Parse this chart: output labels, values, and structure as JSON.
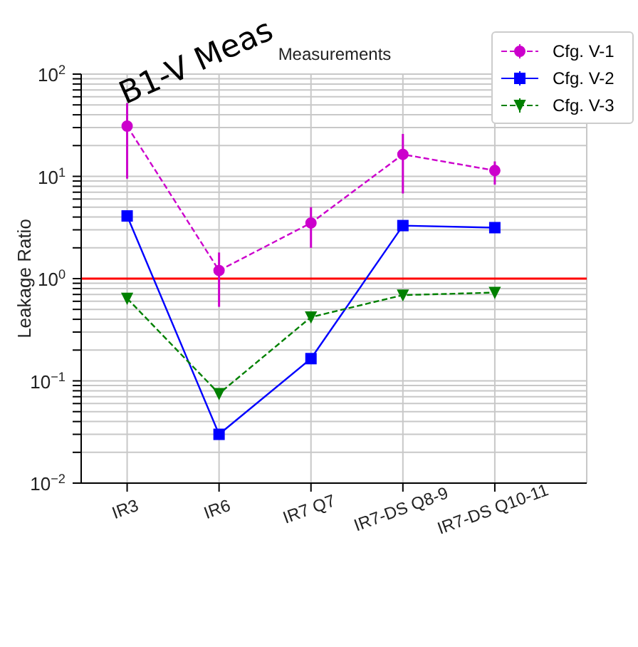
{
  "chart_data": {
    "type": "line",
    "title": "Measurements",
    "ylabel": "Leakage Ratio",
    "annotations": [
      "B1-V Meas"
    ],
    "categories": [
      "IR3",
      "IR6",
      "IR7 Q7",
      "IR7-DS Q8-9",
      "IR7-DS Q10-11"
    ],
    "series": [
      {
        "name": "Cfg. V-1",
        "color": "#cc00cc",
        "line_style": "dashed",
        "marker": "circle",
        "values": [
          31,
          1.2,
          3.5,
          16.4,
          11.4
        ],
        "errors": [
          [
            9.5,
            52
          ],
          [
            0.53,
            1.8
          ],
          [
            2.0,
            5.0
          ],
          [
            6.8,
            26
          ],
          [
            8.3,
            14
          ]
        ]
      },
      {
        "name": "Cfg. V-2",
        "color": "#0000ff",
        "line_style": "solid",
        "marker": "square",
        "values": [
          4.1,
          0.03,
          0.165,
          3.3,
          3.15
        ]
      },
      {
        "name": "Cfg. V-3",
        "color": "#008000",
        "line_style": "dashed",
        "marker": "triangle",
        "values": [
          0.64,
          0.075,
          0.42,
          0.69,
          0.73
        ]
      }
    ],
    "log": "y",
    "ylim": [
      0.01,
      100
    ],
    "yticks": [
      {
        "value": 0.01,
        "label": "10$^{−2}$"
      },
      {
        "value": 0.02,
        "label": null
      },
      {
        "value": 0.03,
        "label": null
      },
      {
        "value": 0.04,
        "label": null
      },
      {
        "value": 0.05,
        "label": null
      },
      {
        "value": 0.06,
        "label": null
      },
      {
        "value": 0.07,
        "label": null
      },
      {
        "value": 0.08,
        "label": null
      },
      {
        "value": 0.09,
        "label": null
      },
      {
        "value": 0.1,
        "label": "10$^{−1}$"
      },
      {
        "value": 0.2,
        "label": null
      },
      {
        "value": 0.3,
        "label": null
      },
      {
        "value": 0.4,
        "label": null
      },
      {
        "value": 0.5,
        "label": null
      },
      {
        "value": 0.6,
        "label": null
      },
      {
        "value": 0.7,
        "label": null
      },
      {
        "value": 0.8,
        "label": null
      },
      {
        "value": 0.9,
        "label": null
      },
      {
        "value": 1,
        "label": "10$^{0}$"
      },
      {
        "value": 2,
        "label": null
      },
      {
        "value": 3,
        "label": null
      },
      {
        "value": 4,
        "label": null
      },
      {
        "value": 5,
        "label": null
      },
      {
        "value": 6,
        "label": null
      },
      {
        "value": 7,
        "label": null
      },
      {
        "value": 8,
        "label": null
      },
      {
        "value": 9,
        "label": null
      },
      {
        "value": 10,
        "label": "10$^{1}$"
      },
      {
        "value": 20,
        "label": null
      },
      {
        "value": 30,
        "label": null
      },
      {
        "value": 40,
        "label": null
      },
      {
        "value": 50,
        "label": null
      },
      {
        "value": 60,
        "label": null
      },
      {
        "value": 70,
        "label": null
      },
      {
        "value": 80,
        "label": null
      },
      {
        "value": 90,
        "label": null
      },
      {
        "value": 100,
        "label": "10$^{2}$"
      }
    ],
    "ref_lines": [
      {
        "axis": "y",
        "value": 1,
        "color": "#ff0000"
      }
    ],
    "grid": true,
    "legend": "top right"
  }
}
